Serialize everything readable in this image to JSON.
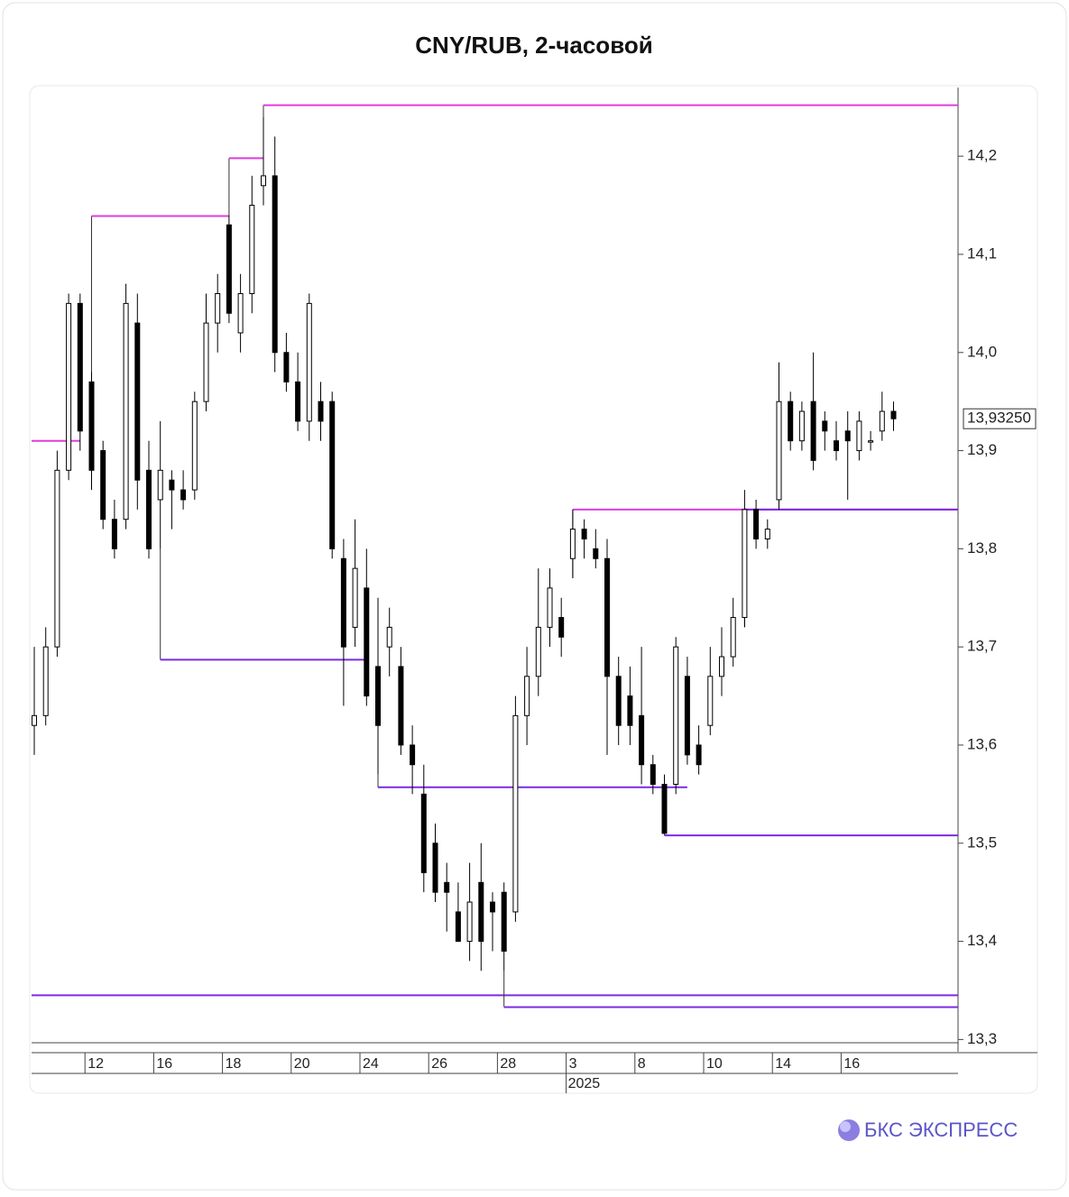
{
  "chart_data": {
    "type": "candlestick",
    "title": "CNY/RUB, 2-часовой",
    "brand": "БКС ЭКСПРЕСС",
    "categories": [
      null,
      null,
      null,
      null,
      "12",
      null,
      null,
      null,
      null,
      null,
      "16",
      null,
      null,
      null,
      null,
      null,
      "18",
      null,
      null,
      null,
      null,
      null,
      "20",
      null,
      null,
      null,
      null,
      null,
      "24",
      null,
      null,
      null,
      null,
      null,
      "26",
      null,
      null,
      null,
      null,
      null,
      "28",
      null,
      null,
      null,
      null,
      null,
      "3",
      null,
      null,
      null,
      null,
      null,
      "8",
      null,
      null,
      null,
      null,
      null,
      "10",
      null,
      null,
      null,
      null,
      null,
      "14",
      null,
      null,
      null,
      null,
      null,
      "16",
      null,
      null,
      null,
      null,
      null
    ],
    "year_label": {
      "text": "2025",
      "index": 46
    },
    "open": [
      13.62,
      13.63,
      13.7,
      13.88,
      14.05,
      13.97,
      13.9,
      13.83,
      13.83,
      14.03,
      13.88,
      13.85,
      13.87,
      13.86,
      13.86,
      13.95,
      14.03,
      14.13,
      14.02,
      14.06,
      14.17,
      14.18,
      14.0,
      13.97,
      13.93,
      13.95,
      13.95,
      13.79,
      13.72,
      13.76,
      13.68,
      13.7,
      13.68,
      13.6,
      13.55,
      13.5,
      13.46,
      13.43,
      13.4,
      13.46,
      13.44,
      13.45,
      13.43,
      13.63,
      13.67,
      13.72,
      13.73,
      13.79,
      13.82,
      13.8,
      13.79,
      13.67,
      13.65,
      13.63,
      13.58,
      13.56,
      13.56,
      13.67,
      13.6,
      13.62,
      13.67,
      13.69,
      13.73,
      13.84,
      13.81,
      13.85,
      13.95,
      13.91,
      13.95,
      13.93,
      13.91,
      13.92,
      13.9,
      13.91,
      13.92,
      13.94
    ],
    "high": [
      13.7,
      13.72,
      13.9,
      14.06,
      14.06,
      13.98,
      13.91,
      13.85,
      14.07,
      14.06,
      13.91,
      13.93,
      13.88,
      13.88,
      13.96,
      14.06,
      14.08,
      14.14,
      14.08,
      14.18,
      14.24,
      14.22,
      14.02,
      14.0,
      14.06,
      13.97,
      13.96,
      13.81,
      13.83,
      13.8,
      13.75,
      13.74,
      13.7,
      13.62,
      13.58,
      13.52,
      13.48,
      13.46,
      13.48,
      13.5,
      13.45,
      13.46,
      13.65,
      13.7,
      13.78,
      13.78,
      13.75,
      13.84,
      13.83,
      13.82,
      13.81,
      13.69,
      13.68,
      13.7,
      13.59,
      13.57,
      13.71,
      13.69,
      13.62,
      13.7,
      13.72,
      13.75,
      13.86,
      13.85,
      13.83,
      13.99,
      13.96,
      13.95,
      14.0,
      13.94,
      13.93,
      13.94,
      13.94,
      13.92,
      13.96,
      13.95
    ],
    "low": [
      13.59,
      13.62,
      13.69,
      13.87,
      13.9,
      13.86,
      13.82,
      13.79,
      13.82,
      13.84,
      13.79,
      13.8,
      13.82,
      13.84,
      13.85,
      13.94,
      14.0,
      14.03,
      14.0,
      14.04,
      14.15,
      13.98,
      13.96,
      13.92,
      13.91,
      13.91,
      13.79,
      13.64,
      13.7,
      13.64,
      13.57,
      13.67,
      13.59,
      13.55,
      13.45,
      13.44,
      13.41,
      13.4,
      13.38,
      13.37,
      13.39,
      13.37,
      13.42,
      13.6,
      13.65,
      13.7,
      13.69,
      13.77,
      13.79,
      13.78,
      13.59,
      13.6,
      13.6,
      13.56,
      13.55,
      13.51,
      13.55,
      13.58,
      13.57,
      13.61,
      13.65,
      13.68,
      13.72,
      13.8,
      13.8,
      13.84,
      13.9,
      13.9,
      13.88,
      13.9,
      13.89,
      13.85,
      13.89,
      13.9,
      13.91,
      13.92
    ],
    "close": [
      13.63,
      13.7,
      13.88,
      14.05,
      13.92,
      13.88,
      13.83,
      13.8,
      14.05,
      13.87,
      13.8,
      13.88,
      13.86,
      13.85,
      13.95,
      14.03,
      14.06,
      14.04,
      14.06,
      14.15,
      14.18,
      14.0,
      13.97,
      13.93,
      14.05,
      13.93,
      13.8,
      13.7,
      13.78,
      13.65,
      13.62,
      13.72,
      13.6,
      13.58,
      13.47,
      13.45,
      13.45,
      13.4,
      13.44,
      13.4,
      13.43,
      13.39,
      13.63,
      13.67,
      13.72,
      13.76,
      13.71,
      13.82,
      13.81,
      13.79,
      13.67,
      13.62,
      13.62,
      13.58,
      13.56,
      13.51,
      13.7,
      13.59,
      13.58,
      13.67,
      13.69,
      13.73,
      13.84,
      13.81,
      13.82,
      13.95,
      13.91,
      13.94,
      13.89,
      13.92,
      13.9,
      13.91,
      13.93,
      13.91,
      13.94,
      13.9325
    ],
    "last_price": {
      "value": 13.9325,
      "label": "13,93250"
    },
    "levels": [
      {
        "value": 14.252,
        "start": 20,
        "end": null,
        "color": "#e03ce0"
      },
      {
        "value": 14.139,
        "start": 5,
        "end": 17,
        "color": "#e03ce0"
      },
      {
        "value": 14.198,
        "start": 17,
        "end": 20,
        "color": "#e03ce0"
      },
      {
        "value": 13.91,
        "start": 0,
        "end": 4,
        "color": "#e03ce0"
      },
      {
        "value": 13.84,
        "start": 47,
        "end": null,
        "color": "#e03ce0"
      },
      {
        "value": 13.84,
        "start": 62,
        "end": null,
        "color": "#7b2be0"
      },
      {
        "value": 13.687,
        "start": 11,
        "end": 29,
        "color": "#7b2be0"
      },
      {
        "value": 13.557,
        "start": 30,
        "end": 57,
        "color": "#7b2be0"
      },
      {
        "value": 13.508,
        "start": 55,
        "end": null,
        "color": "#7b2be0"
      },
      {
        "value": 13.345,
        "start": 0,
        "end": null,
        "color": "#7b2be0"
      },
      {
        "value": 13.333,
        "start": 41,
        "end": null,
        "color": "#7b2be0"
      }
    ],
    "up_color": "#ffffff",
    "down_color": "#000000",
    "ylim": [
      13.293,
      14.27
    ],
    "yticks": [
      {
        "value": 13.3,
        "label": "13,3"
      },
      {
        "value": 13.4,
        "label": "13,4"
      },
      {
        "value": 13.5,
        "label": "13,5"
      },
      {
        "value": 13.6,
        "label": "13,6"
      },
      {
        "value": 13.7,
        "label": "13,7"
      },
      {
        "value": 13.8,
        "label": "13,8"
      },
      {
        "value": 13.9,
        "label": "13,9"
      },
      {
        "value": 14.0,
        "label": "14,0"
      },
      {
        "value": 14.1,
        "label": "14,1"
      },
      {
        "value": 14.2,
        "label": "14,2"
      }
    ]
  }
}
